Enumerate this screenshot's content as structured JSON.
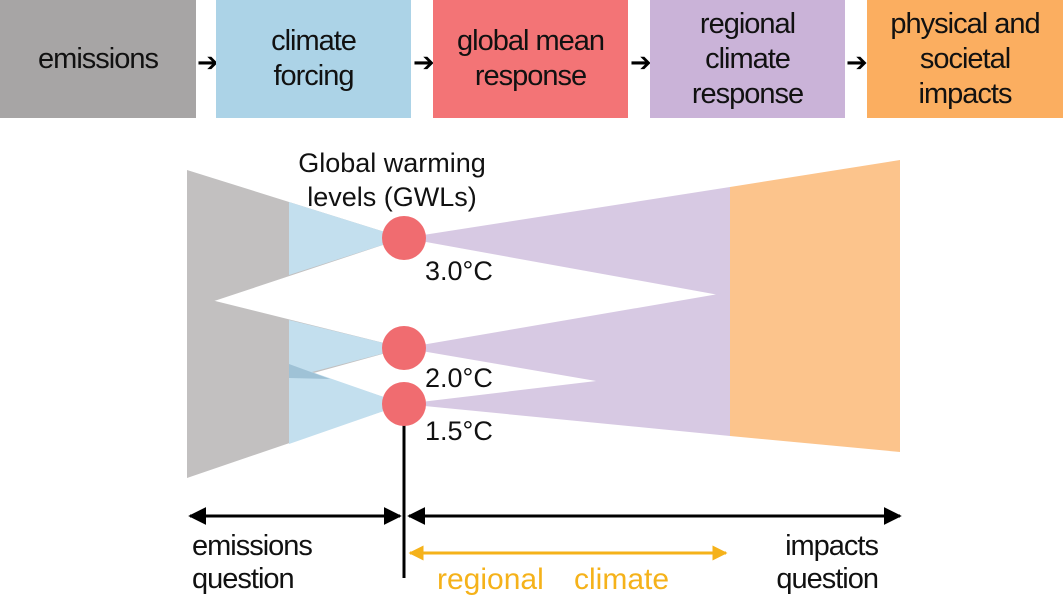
{
  "flow": {
    "boxes": [
      {
        "label": "emissions",
        "color": "#a7a5a5"
      },
      {
        "label": "climate\nforcing",
        "color": "#acd3e7"
      },
      {
        "label": "global mean\nresponse",
        "color": "#f37476"
      },
      {
        "label": "regional\nclimate\nresponse",
        "color": "#cab3d8"
      },
      {
        "label": "physical and\nsocietal\nimpacts",
        "color": "#fbae60"
      }
    ],
    "arrow_glyph": "➔"
  },
  "gwl": {
    "title": "Global warming\nlevels (GWLs)",
    "levels": [
      {
        "label": "3.0°C"
      },
      {
        "label": "2.0°C"
      },
      {
        "label": "1.5°C"
      }
    ],
    "dot_color": "#f06c70"
  },
  "axis": {
    "emissions_question": "emissions\nquestion",
    "impacts_question": "impacts\nquestion",
    "regional_left": "regional",
    "regional_right": "climate",
    "regional_color": "#f5b21a"
  }
}
